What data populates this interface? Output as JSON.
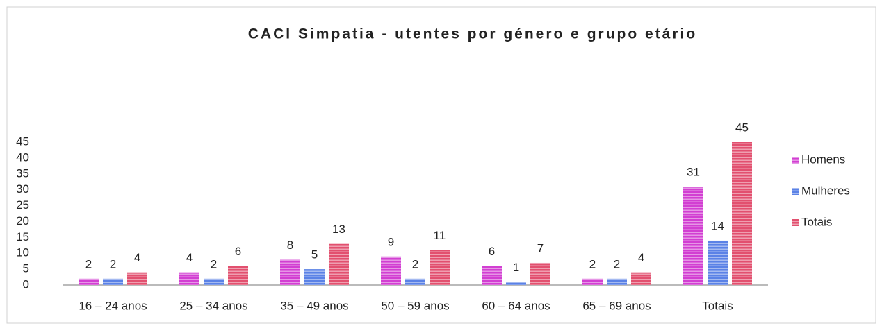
{
  "chart_data": {
    "type": "bar",
    "title": "CACI Simpatia - utentes por género e grupo etário",
    "categories": [
      "16 – 24 anos",
      "25 – 34 anos",
      "35 – 49 anos",
      "50 – 59 anos",
      "60 – 64 anos",
      "65 – 69 anos",
      "Totais"
    ],
    "series": [
      {
        "name": "Homens",
        "color": "#d23fd2",
        "values": [
          2,
          4,
          8,
          9,
          6,
          2,
          31
        ]
      },
      {
        "name": "Mulheres",
        "color": "#5b82e6",
        "values": [
          2,
          2,
          5,
          2,
          1,
          2,
          14
        ]
      },
      {
        "name": "Totais",
        "color": "#e2506f",
        "values": [
          4,
          6,
          13,
          11,
          7,
          4,
          45
        ]
      }
    ],
    "ylim": [
      0,
      45
    ],
    "yticks": [
      0,
      5,
      10,
      15,
      20,
      25,
      30,
      35,
      40,
      45
    ],
    "grid": false,
    "legend": "right"
  }
}
